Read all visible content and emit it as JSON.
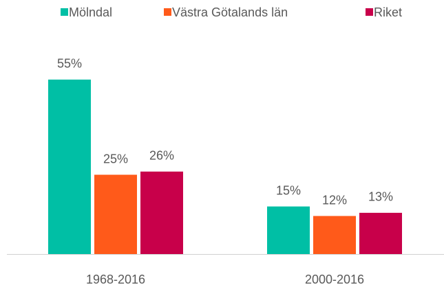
{
  "chart_data": {
    "type": "bar",
    "categories": [
      "1968-2016",
      "2000-2016"
    ],
    "series": [
      {
        "name": "Mölndal",
        "color": "#00bfa5",
        "values": [
          55,
          15
        ],
        "value_labels": [
          "55%",
          "15%"
        ]
      },
      {
        "name": "Västra Götalands län",
        "color": "#ff5a1a",
        "values": [
          25,
          12
        ],
        "value_labels": [
          "25%",
          "12%"
        ]
      },
      {
        "name": "Riket",
        "color": "#c8004a",
        "values": [
          26,
          13
        ],
        "value_labels": [
          "26%",
          "13%"
        ]
      }
    ],
    "legend": "top"
  }
}
